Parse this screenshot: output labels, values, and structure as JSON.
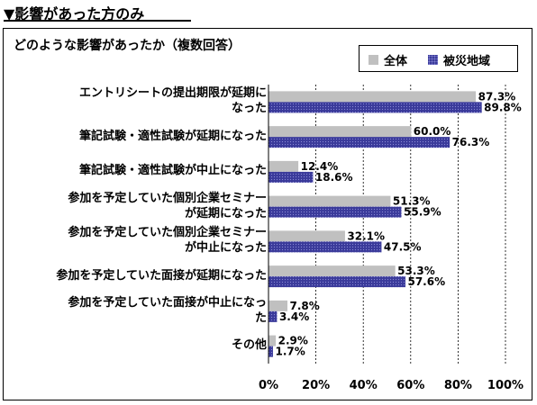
{
  "heading": "▼影響があった方のみ",
  "chart_data": {
    "type": "bar",
    "orientation": "horizontal",
    "title": "どのような影響があったか（複数回答）",
    "categories": [
      "エントリシートの提出期限が延期に\nなった",
      "筆記試験・適性試験が延期になった",
      "筆記試験・適性試験が中止になった",
      "参加を予定していた個別企業セミナー\nが延期になった",
      "参加を予定していた個別企業セミナー\nが中止になった",
      "参加を予定していた面接が延期になった",
      "参加を予定していた面接が中止になっ\nた",
      "その他"
    ],
    "series": [
      {
        "name": "全体",
        "color": "#c0c0c0",
        "values": [
          87.3,
          60.0,
          12.4,
          51.3,
          32.1,
          53.3,
          7.8,
          2.9
        ],
        "labels": [
          "87.3%",
          "60.0%",
          "12.4%",
          "51.3%",
          "32.1%",
          "53.3%",
          "7.8%",
          "2.9%"
        ]
      },
      {
        "name": "被災地域",
        "color": "#3a3a9a",
        "values": [
          89.8,
          76.3,
          18.6,
          55.9,
          47.5,
          57.6,
          3.4,
          1.7
        ],
        "labels": [
          "89.8%",
          "76.3%",
          "18.6%",
          "55.9%",
          "47.5%",
          "57.6%",
          "3.4%",
          "1.7%"
        ]
      }
    ],
    "xlim": [
      0,
      100
    ],
    "xticks": [
      "0%",
      "20%",
      "40%",
      "60%",
      "80%",
      "100%"
    ],
    "grid": true,
    "legend": "top-right"
  }
}
